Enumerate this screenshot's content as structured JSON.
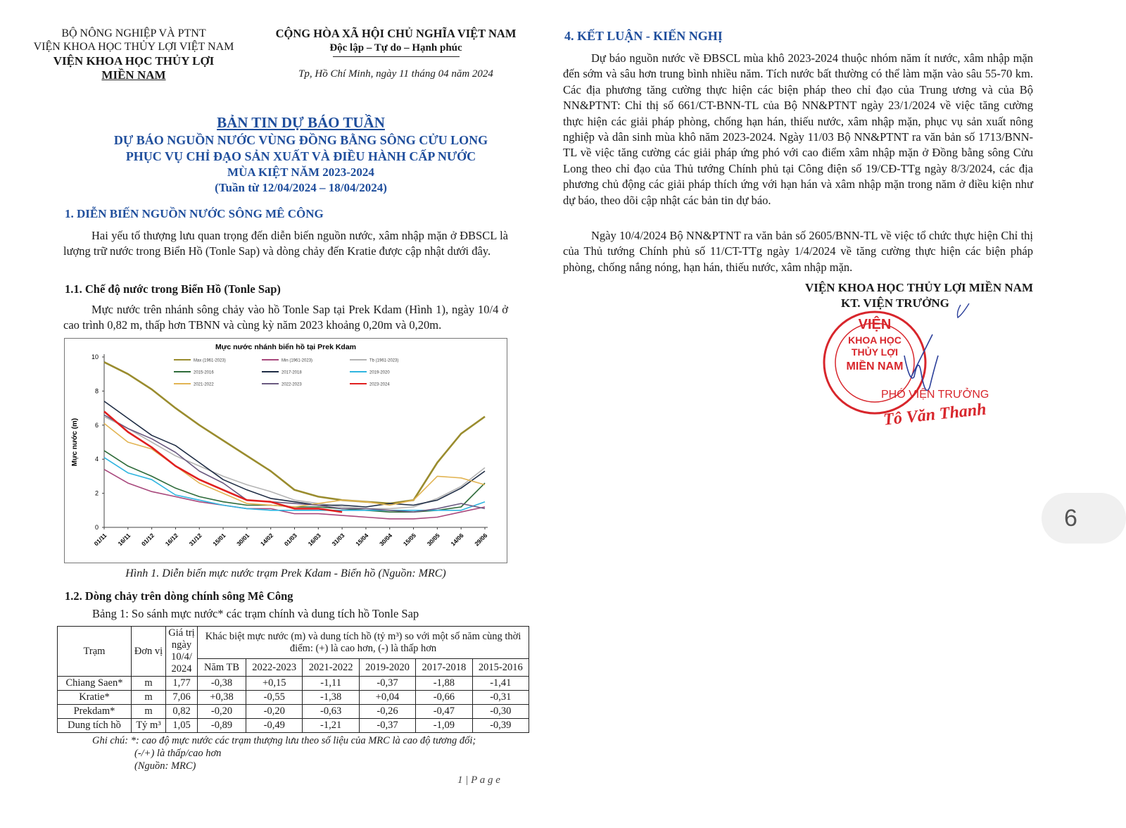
{
  "header": {
    "ministry": "BỘ NÔNG NGHIỆP VÀ PTNT",
    "academy": "VIỆN KHOA HỌC THỦY LỢI VIỆT NAM",
    "institute_line1": "VIỆN KHOA HỌC THỦY LỢI",
    "institute_line2": "MIỀN NAM",
    "nation": "CỘNG HÒA XÃ HỘI CHỦ NGHĨA VIỆT NAM",
    "motto": "Độc lập – Tự do – Hạnh phúc",
    "date": "Tp, Hồ Chí Minh, ngày 11 tháng 04 năm 2024"
  },
  "title": {
    "main": "BẢN TIN DỰ BÁO TUẦN",
    "line1": "DỰ BÁO NGUỒN NƯỚC VÙNG ĐỒNG BẰNG SÔNG CỬU LONG",
    "line2": "PHỤC VỤ CHỈ ĐẠO SẢN XUẤT VÀ ĐIỀU HÀNH CẤP NƯỚC",
    "line3": "MÙA KIỆT NĂM 2023-2024",
    "line4": "(Tuần từ 12/04/2024 – 18/04/2024)"
  },
  "section1": {
    "heading": "1. DIỄN BIẾN NGUỒN NƯỚC SÔNG MÊ CÔNG",
    "intro": "Hai yếu tố thượng lưu quan trọng đến diễn biến nguồn nước, xâm nhập mặn ở ĐBSCL là lượng trữ nước trong Biển Hồ (Tonle Sap) và dòng chảy đến Kratie được cập nhật dưới đây.",
    "sub1_heading": "1.1.   Chế độ nước trong Biển Hồ (Tonle Sap)",
    "sub1_text": "Mực nước trên nhánh sông chảy vào hồ Tonle Sap tại Prek Kdam (Hình 1), ngày 10/4 ở cao trình 0,82 m, thấp hơn TBNN và cùng kỳ năm 2023 khoảng 0,20m và 0,20m.",
    "figure_caption": "Hình 1. Diễn biến mực nước trạm Prek Kdam - Biển hồ (Nguồn: MRC)",
    "sub2_heading": "1.2.   Dòng chảy trên dòng chính sông Mê Công",
    "table_caption": "Bảng 1: So sánh mực nước* các trạm chính và dung tích hồ Tonle Sap"
  },
  "table": {
    "col_station": "Trạm",
    "col_unit": "Đơn vị",
    "col_value": "Giá trị ngày 10/4/ 2024",
    "col_diff": "Khác biệt mực nước (m) và dung tích hồ (tỷ m³) so với một số năm cùng thời điểm: (+) là cao hơn, (-) là thấp hơn",
    "years": [
      "Năm TB",
      "2022-2023",
      "2021-2022",
      "2019-2020",
      "2017-2018",
      "2015-2016"
    ],
    "rows": [
      {
        "station": "Chiang Saen*",
        "unit": "m",
        "value": "1,77",
        "diffs": [
          "-0,38",
          "+0,15",
          "-1,11",
          "-0,37",
          "-1,88",
          "-1,41"
        ]
      },
      {
        "station": "Kratie*",
        "unit": "m",
        "value": "7,06",
        "diffs": [
          "+0,38",
          "-0,55",
          "-1,38",
          "+0,04",
          "-0,66",
          "-0,31"
        ]
      },
      {
        "station": "Prekdam*",
        "unit": "m",
        "value": "0,82",
        "diffs": [
          "-0,20",
          "-0,20",
          "-0,63",
          "-0,26",
          "-0,47",
          "-0,30"
        ]
      },
      {
        "station": "Dung tích hồ",
        "unit": "Tỷ m³",
        "value": "1,05",
        "diffs": [
          "-0,89",
          "-0,49",
          "-1,21",
          "-0,37",
          "-1,09",
          "-0,39"
        ]
      }
    ],
    "note1": "Ghi chú: *: cao độ mực nước các trạm thượng lưu theo số liệu của MRC là cao độ tương đối;",
    "note2": "(-/+) là thấp/cao hơn",
    "note3": "(Nguồn: MRC)"
  },
  "footer": {
    "page_label": "1 | P a g e"
  },
  "section4": {
    "heading": "4. KẾT LUẬN - KIẾN NGHỊ",
    "para1": "Dự báo nguồn nước về ĐBSCL mùa khô 2023-2024 thuộc nhóm năm ít nước, xâm nhập mặn đến sớm và sâu hơn trung bình nhiều năm. Tích nước bất thường có thể làm mặn vào sâu 55-70 km. Các địa phương tăng cường thực hiện các biện pháp theo chỉ đạo của Trung ương và của Bộ NN&PTNT: Chỉ thị số 661/CT-BNN-TL của Bộ NN&PTNT ngày 23/1/2024 về việc tăng cường thực hiện các giải pháp phòng, chống hạn hán, thiếu nước, xâm nhập mặn, phục vụ sản xuất nông nghiệp và dân sinh mùa khô năm 2023-2024. Ngày 11/03 Bộ NN&PTNT ra văn bản số 1713/BNN-TL về việc tăng cường các giải pháp ứng phó với cao điểm xâm nhập mặn ở Đồng bằng sông Cửu Long theo chỉ đạo của Thủ tướng Chính phủ tại Công điện số 19/CĐ-TTg ngày 8/3/2024, các địa phương chủ động các giải pháp thích ứng với hạn hán và xâm nhập mặn trong năm ở điều kiện như dự báo, theo dõi cập nhật các bản tin dự báo.",
    "para2": "Ngày 10/4/2024 Bộ NN&PTNT ra văn bản số 2605/BNN-TL về việc tổ chức thực hiện Chỉ thị của Thủ tướng Chính phủ số 11/CT-TTg ngày 1/4/2024 về tăng cường thực hiện các biện pháp phòng, chống nắng nóng, hạn hán, thiếu nước, xâm nhập mặn."
  },
  "signature": {
    "org": "VIỆN KHOA HỌC THỦY LỢI MIỀN NAM",
    "role": "KT. VIỆN TRƯỞNG",
    "stamp_text": "VIỆN KHOA HỌC THỦY LỢI MIỀN NAM",
    "deputy": "PHÓ VIỆN TRƯỞNG",
    "name": "Tô Văn Thanh"
  },
  "viewer": {
    "page_number": "6"
  },
  "chart_data": {
    "type": "line",
    "title": "Mực nước nhánh biển hồ tại Prek Kdam",
    "ylabel": "Mực nước (m)",
    "xlabel": "",
    "ylim": [
      0,
      10
    ],
    "yticks": [
      0,
      2,
      4,
      6,
      8,
      10
    ],
    "legend": "top",
    "grid": false,
    "x": [
      "01/11",
      "16/11",
      "01/12",
      "16/12",
      "31/12",
      "15/01",
      "30/01",
      "14/02",
      "01/03",
      "16/03",
      "31/03",
      "15/04",
      "30/04",
      "15/05",
      "30/05",
      "14/06",
      "29/06"
    ],
    "series": [
      {
        "name": "Max (1961-2023)",
        "color": "#9a8c2e",
        "values": [
          9.7,
          9.0,
          8.1,
          7.0,
          6.0,
          5.1,
          4.2,
          3.3,
          2.2,
          1.8,
          1.6,
          1.5,
          1.4,
          1.6,
          3.8,
          5.5,
          6.5
        ]
      },
      {
        "name": "Min (1961-2023)",
        "color": "#a8487c",
        "values": [
          3.4,
          2.6,
          2.1,
          1.8,
          1.5,
          1.3,
          1.1,
          1.1,
          0.8,
          0.8,
          0.7,
          0.6,
          0.5,
          0.5,
          0.6,
          0.9,
          1.2
        ]
      },
      {
        "name": "Tb (1961-2023)",
        "color": "#b4b4b4",
        "values": [
          6.5,
          5.8,
          5.0,
          4.2,
          3.6,
          3.0,
          2.5,
          2.1,
          1.6,
          1.4,
          1.2,
          1.1,
          1.1,
          1.2,
          1.7,
          2.4,
          3.5
        ]
      },
      {
        "name": "2015-2016",
        "color": "#2e6b3a",
        "values": [
          4.5,
          3.6,
          3.0,
          2.3,
          1.8,
          1.5,
          1.3,
          1.3,
          1.2,
          1.2,
          1.1,
          1.0,
          0.9,
          0.9,
          1.0,
          1.2,
          2.6
        ]
      },
      {
        "name": "2017-2018",
        "color": "#1f2d45",
        "values": [
          7.4,
          6.4,
          5.4,
          4.8,
          3.8,
          2.8,
          2.2,
          1.7,
          1.5,
          1.3,
          1.3,
          1.2,
          1.4,
          1.3,
          1.6,
          2.3,
          3.3
        ]
      },
      {
        "name": "2019-2020",
        "color": "#2fb5e0",
        "values": [
          4.1,
          3.2,
          2.8,
          1.9,
          1.6,
          1.3,
          1.1,
          1.0,
          1.0,
          1.0,
          1.0,
          1.0,
          1.0,
          1.0,
          1.0,
          1.0,
          1.5
        ]
      },
      {
        "name": "2021-2022",
        "color": "#e2b453",
        "values": [
          6.1,
          5.0,
          4.6,
          3.6,
          2.6,
          2.0,
          1.4,
          1.3,
          1.2,
          1.4,
          1.6,
          1.5,
          1.3,
          1.6,
          3.0,
          2.9,
          2.5
        ]
      },
      {
        "name": "2022-2023",
        "color": "#6a5a80",
        "values": [
          6.6,
          5.8,
          5.2,
          4.4,
          3.3,
          2.6,
          1.6,
          1.5,
          1.4,
          1.3,
          1.1,
          1.1,
          1.0,
          0.9,
          1.1,
          1.4,
          1.1
        ]
      },
      {
        "name": "2023-2024",
        "color": "#e02020",
        "values": [
          6.8,
          5.6,
          4.7,
          3.6,
          2.8,
          2.2,
          1.6,
          1.5,
          1.1,
          1.1,
          0.9,
          null,
          null,
          null,
          null,
          null,
          null
        ]
      }
    ]
  }
}
